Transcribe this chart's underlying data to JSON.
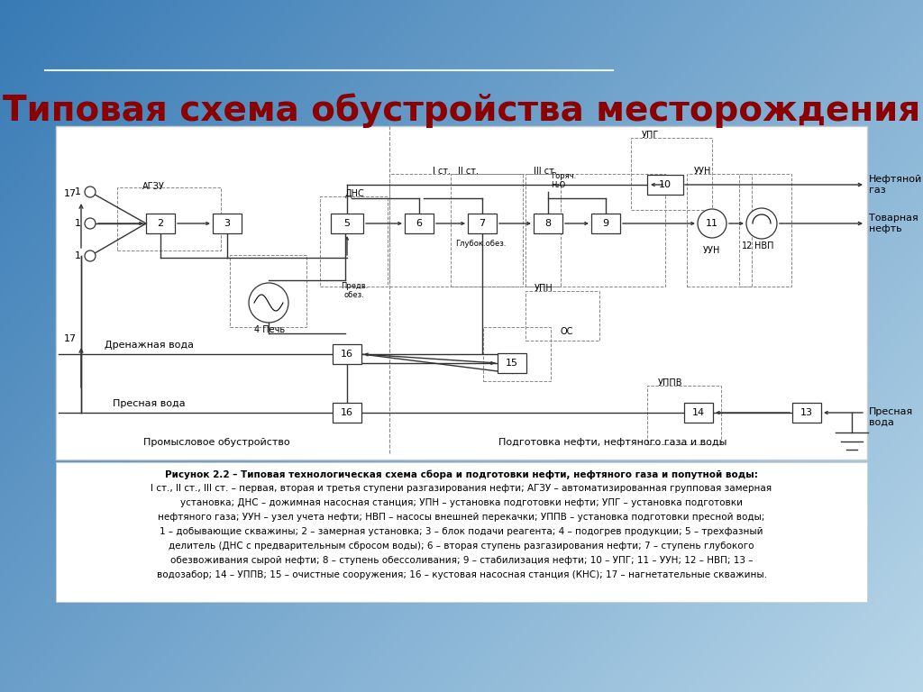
{
  "title": "Типовая схема обустройства месторождения",
  "title_color": "#8b0000",
  "caption_line1": "Рисунок 2.2 – Типовая технологическая схема сбора и подготовки нефти, нефтяного газа и попутной воды:",
  "caption_line2": "I ст., II ст., III ст. – первая, вторая и третья ступени разгазирования нефти; АГЗУ – автоматизированная групповая замерная",
  "caption_line3": "установка; ДНС – дожимная насосная станция; УПН – установка подготовки нефти; УПГ – установка подготовки",
  "caption_line4": "нефтяного газа; УУН – узел учета нефти; НВП – насосы внешней перекачки; УППВ – установка подготовки пресной воды;",
  "caption_line5": "1 – добывающие скважины; 2 – замерная установка; 3 – блок подачи реагента; 4 – подогрев продукции; 5 – трехфазный",
  "caption_line6": "делитель (ДНС с предварительным сбросом воды); 6 – вторая ступень разгазирования нефти; 7 – ступень глубокого",
  "caption_line7": "обезвоживания сырой нефти; 8 – ступень обессоливания; 9 – стабилизация нефти; 10 – УПГ; 11 – УУН; 12 – НВП; 13 –",
  "caption_line8": "водозабор; 14 – УППВ; 15 – очистные сооружения; 16 – кустовая насосная станция (КНС); 17 – нагнетательные скважины."
}
